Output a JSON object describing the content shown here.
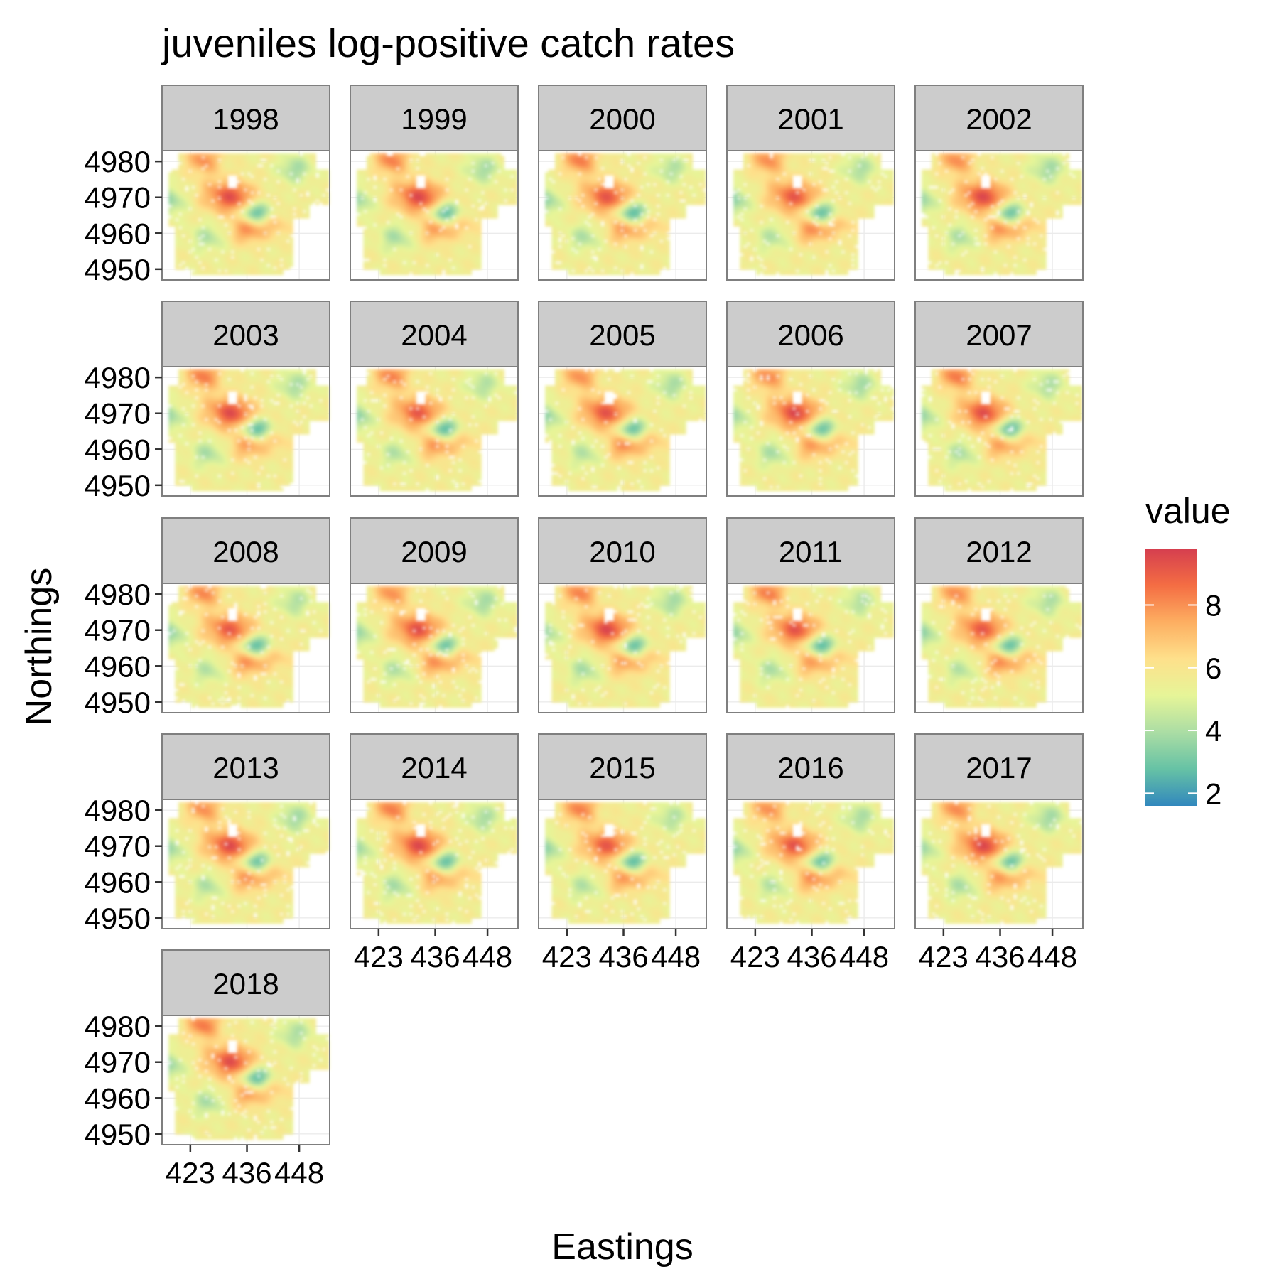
{
  "chart_data": {
    "type": "heatmap",
    "title": "juveniles log-positive catch rates",
    "xlabel": "Eastings",
    "ylabel": "Northings",
    "facets": [
      "1998",
      "1999",
      "2000",
      "2001",
      "2002",
      "2003",
      "2004",
      "2005",
      "2006",
      "2007",
      "2008",
      "2009",
      "2010",
      "2011",
      "2012",
      "2013",
      "2014",
      "2015",
      "2016",
      "2017",
      "2018"
    ],
    "facet_columns": 5,
    "x_ticks": [
      423,
      436,
      448
    ],
    "x_tick_labels": [
      "423",
      "436",
      "448"
    ],
    "y_ticks": [
      4950,
      4960,
      4970,
      4980
    ],
    "y_tick_labels": [
      "4950",
      "4960",
      "4970",
      "4980"
    ],
    "xlim": [
      416.5,
      455
    ],
    "ylim": [
      4947,
      4983
    ],
    "grid": true,
    "legend": {
      "title": "value",
      "placement": "right",
      "range": [
        1.6,
        9.8
      ],
      "ticks": [
        2,
        4,
        6,
        8
      ],
      "tick_labels": [
        "2",
        "4",
        "6",
        "8"
      ],
      "palette": [
        "#3288BD",
        "#66C2A5",
        "#ABDDA4",
        "#E6F598",
        "#FEE08B",
        "#FDAE61",
        "#F46D43",
        "#D53E4F"
      ]
    },
    "hotspots": [
      {
        "x": 433.5,
        "y": 4970,
        "value": 8.8,
        "description": "high catch-rate core"
      },
      {
        "x": 429,
        "y": 4971,
        "value": 7.2,
        "description": "elevated ring west of core"
      },
      {
        "x": 437,
        "y": 4966,
        "value": 2.8,
        "description": "low catch-rate pocket"
      },
      {
        "x": 439.5,
        "y": 4965.5,
        "value": 3.5,
        "description": "low pocket east"
      },
      {
        "x": 447,
        "y": 4978,
        "value": 3.8,
        "description": "low patch north-east"
      },
      {
        "x": 418,
        "y": 4969,
        "value": 3.5,
        "description": "low patch western edge"
      },
      {
        "x": 427,
        "y": 4959,
        "value": 4.0,
        "description": "low band south-west"
      },
      {
        "x": 436,
        "y": 4961,
        "value": 8.0,
        "description": "high spot south"
      },
      {
        "x": 442,
        "y": 4962.5,
        "value": 7.0,
        "description": "elevated south-east"
      },
      {
        "x": 426,
        "y": 4980.5,
        "value": 8.5,
        "description": "high spot northern edge"
      },
      {
        "x": 422,
        "y": 4952,
        "value": 5.6,
        "description": "background south"
      }
    ],
    "background_value": 5.6
  }
}
